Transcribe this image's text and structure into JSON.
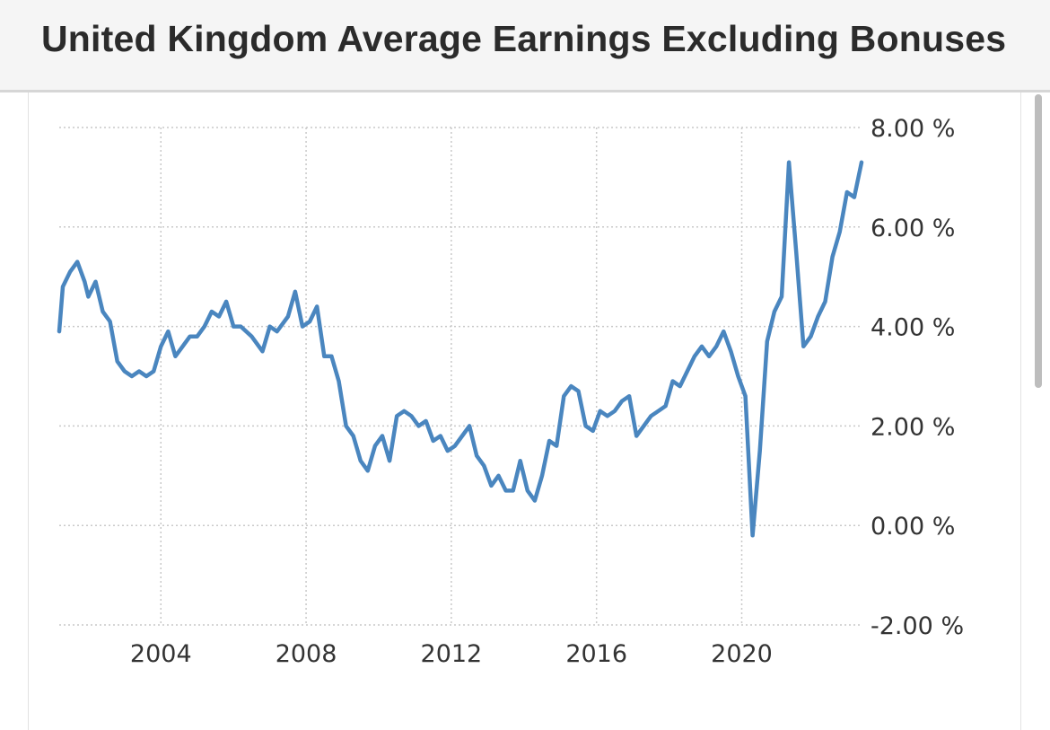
{
  "header": {
    "title": "United Kingdom Average Earnings Excluding Bonuses"
  },
  "colors": {
    "line": "#4a86bf",
    "grid": "#c9c9c9",
    "text": "#333333",
    "header_bg": "#f5f5f5"
  },
  "chart_data": {
    "type": "line",
    "title": "United Kingdom Average Earnings Excluding Bonuses",
    "xlabel": "",
    "ylabel": "",
    "xlim": [
      2001.2,
      2023.3
    ],
    "ylim": [
      -2,
      8
    ],
    "x_ticks": [
      2004,
      2008,
      2012,
      2016,
      2020
    ],
    "x_tick_labels": [
      "2004",
      "2008",
      "2012",
      "2016",
      "2020"
    ],
    "y_ticks": [
      8,
      6,
      4,
      2,
      0,
      -2
    ],
    "y_tick_labels": [
      "8.00 %",
      "6.00 %",
      "4.00 %",
      "2.00 %",
      "0.00 %",
      "-2.00 %"
    ],
    "grid": true,
    "series": [
      {
        "name": "",
        "x": [
          2001.2,
          2001.3,
          2001.5,
          2001.7,
          2001.9,
          2002.0,
          2002.2,
          2002.4,
          2002.6,
          2002.8,
          2003.0,
          2003.2,
          2003.4,
          2003.6,
          2003.8,
          2004.0,
          2004.2,
          2004.4,
          2004.6,
          2004.8,
          2005.0,
          2005.2,
          2005.4,
          2005.6,
          2005.8,
          2006.0,
          2006.2,
          2006.5,
          2006.8,
          2007.0,
          2007.2,
          2007.5,
          2007.7,
          2007.9,
          2008.1,
          2008.3,
          2008.5,
          2008.7,
          2008.9,
          2009.1,
          2009.3,
          2009.5,
          2009.7,
          2009.9,
          2010.1,
          2010.3,
          2010.5,
          2010.7,
          2010.9,
          2011.1,
          2011.3,
          2011.5,
          2011.7,
          2011.9,
          2012.1,
          2012.3,
          2012.5,
          2012.7,
          2012.9,
          2013.1,
          2013.3,
          2013.5,
          2013.7,
          2013.9,
          2014.1,
          2014.3,
          2014.5,
          2014.7,
          2014.9,
          2015.1,
          2015.3,
          2015.5,
          2015.7,
          2015.9,
          2016.1,
          2016.3,
          2016.5,
          2016.7,
          2016.9,
          2017.1,
          2017.3,
          2017.5,
          2017.7,
          2017.9,
          2018.1,
          2018.3,
          2018.5,
          2018.7,
          2018.9,
          2019.1,
          2019.3,
          2019.5,
          2019.7,
          2019.9,
          2020.1,
          2020.3,
          2020.5,
          2020.7,
          2020.9,
          2021.1,
          2021.3,
          2021.5,
          2021.7,
          2021.9,
          2022.1,
          2022.3,
          2022.5,
          2022.7,
          2022.9,
          2023.1,
          2023.3
        ],
        "values": [
          3.9,
          4.8,
          5.1,
          5.3,
          4.9,
          4.6,
          4.9,
          4.3,
          4.1,
          3.3,
          3.1,
          3.0,
          3.1,
          3.0,
          3.1,
          3.6,
          3.9,
          3.4,
          3.6,
          3.8,
          3.8,
          4.0,
          4.3,
          4.2,
          4.5,
          4.0,
          4.0,
          3.8,
          3.5,
          4.0,
          3.9,
          4.2,
          4.7,
          4.0,
          4.1,
          4.4,
          3.4,
          3.4,
          2.9,
          2.0,
          1.8,
          1.3,
          1.1,
          1.6,
          1.8,
          1.3,
          2.2,
          2.3,
          2.2,
          2.0,
          2.1,
          1.7,
          1.8,
          1.5,
          1.6,
          1.8,
          2.0,
          1.4,
          1.2,
          0.8,
          1.0,
          0.7,
          0.7,
          1.3,
          0.7,
          0.5,
          1.0,
          1.7,
          1.6,
          2.6,
          2.8,
          2.7,
          2.0,
          1.9,
          2.3,
          2.2,
          2.3,
          2.5,
          2.6,
          1.8,
          2.0,
          2.2,
          2.3,
          2.4,
          2.9,
          2.8,
          3.1,
          3.4,
          3.6,
          3.4,
          3.6,
          3.9,
          3.5,
          3.0,
          2.6,
          -0.2,
          1.5,
          3.7,
          4.3,
          4.6,
          7.3,
          5.5,
          3.6,
          3.8,
          4.2,
          4.5,
          5.4,
          5.9,
          6.7,
          6.6,
          7.3
        ]
      }
    ]
  }
}
